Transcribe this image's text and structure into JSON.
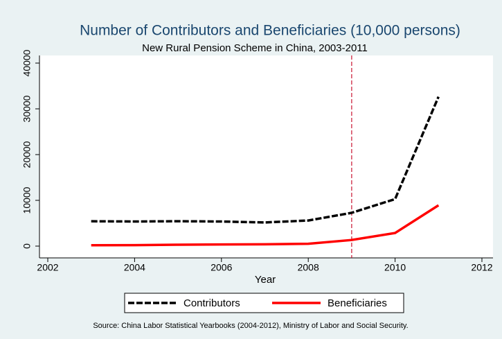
{
  "chart_data": {
    "type": "line",
    "title": "Number of Contributors and Beneficiaries (10,000 persons)",
    "subtitle": "New Rural Pension Scheme in China, 2003-2011",
    "x_label": "Year",
    "source": "Source: China Labor Statistical Yearbooks (2004-2012), Ministry of Labor and Social Security.",
    "x": [
      2003,
      2004,
      2005,
      2006,
      2007,
      2008,
      2009,
      2010,
      2011
    ],
    "series": [
      {
        "name": "Contributors",
        "color": "#000000",
        "dash": true,
        "values": [
          5428,
          5378,
          5442,
          5374,
          5171,
          5595,
          7277,
          10277,
          32643
        ]
      },
      {
        "name": "Beneficiaries",
        "color": "#ff0000",
        "dash": false,
        "values": [
          198,
          205,
          302,
          355,
          392,
          512,
          1335,
          2863,
          8922
        ]
      }
    ],
    "xline": 2009,
    "xline_color": "#c8102e",
    "xlim": [
      2002,
      2012
    ],
    "xticks": [
      2002,
      2004,
      2006,
      2008,
      2010,
      2012
    ],
    "ylim": [
      0,
      40000
    ],
    "yticks": [
      0,
      10000,
      20000,
      30000,
      40000
    ],
    "grid": false,
    "legend": "bottom"
  }
}
